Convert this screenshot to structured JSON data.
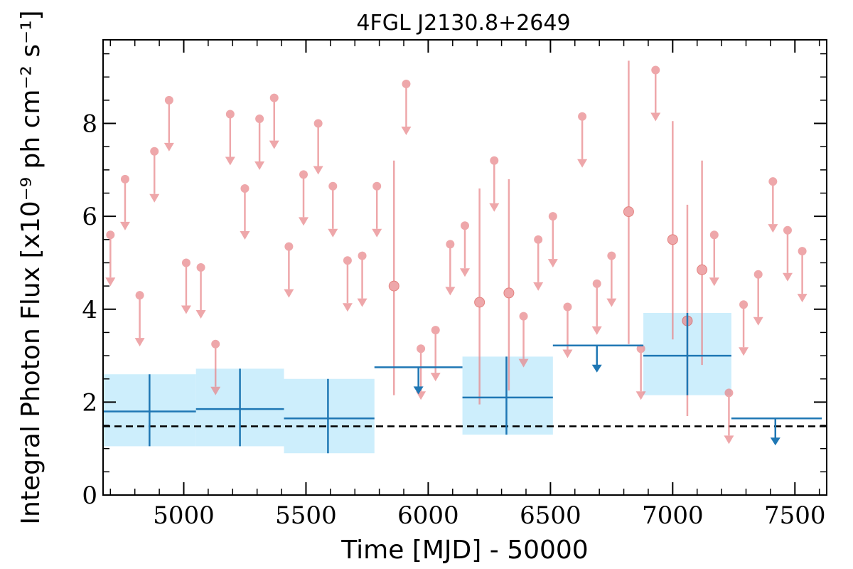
{
  "chart_data": {
    "type": "scatter",
    "title": "4FGL J2130.8+2649",
    "xlabel": "Time [MJD] - 50000",
    "ylabel": "Integral Photon Flux [x10⁻⁹ ph cm⁻² s⁻¹]",
    "xlim": [
      4670,
      7630
    ],
    "ylim": [
      0,
      9.8
    ],
    "xticks": [
      5000,
      5500,
      6000,
      6500,
      7000,
      7500
    ],
    "yticks": [
      0,
      2,
      4,
      6,
      8
    ],
    "grid": false,
    "baseline": {
      "value": 1.48,
      "style": "dashed",
      "color": "#000000"
    },
    "colors": {
      "short_bins": "#e8868a",
      "long_bins": "#1f77b4",
      "long_bins_fill": "#cdeefc"
    },
    "short_bin_upper_limits": {
      "x": [
        4700,
        4760,
        4820,
        4880,
        4940,
        5010,
        5070,
        5130,
        5190,
        5250,
        5310,
        5370,
        5430,
        5490,
        5550,
        5610,
        5670,
        5730,
        5790,
        5910,
        5970,
        6030,
        6090,
        6150,
        6270,
        6390,
        6450,
        6510,
        6570,
        6630,
        6690,
        6750,
        6870,
        6930,
        7170,
        7230,
        7290,
        7350,
        7410,
        7470,
        7530
      ],
      "y": [
        5.6,
        6.8,
        4.3,
        7.4,
        8.5,
        5.0,
        4.9,
        3.25,
        8.2,
        6.6,
        8.1,
        8.55,
        5.35,
        6.9,
        8.0,
        6.65,
        5.05,
        5.15,
        6.65,
        8.85,
        3.15,
        3.55,
        5.4,
        5.8,
        7.2,
        3.85,
        5.5,
        6.0,
        4.05,
        8.15,
        4.55,
        5.15,
        3.15,
        9.15,
        5.6,
        2.2,
        4.1,
        4.75,
        6.75,
        5.7,
        5.25
      ]
    },
    "short_bin_detections": {
      "x": [
        5860,
        6210,
        6330,
        6820,
        7000,
        7060,
        7120
      ],
      "y": [
        4.5,
        4.15,
        4.35,
        6.1,
        5.5,
        3.75,
        4.85
      ],
      "y_low": [
        2.15,
        1.95,
        2.25,
        3.25,
        3.35,
        1.7,
        2.8
      ],
      "y_high": [
        7.2,
        6.6,
        6.8,
        9.35,
        8.05,
        6.25,
        7.2
      ]
    },
    "long_bin_detections": {
      "x": [
        4860,
        5230,
        5590,
        6320,
        7060
      ],
      "x_low": [
        4670,
        5050,
        5410,
        6140,
        6880
      ],
      "x_high": [
        5050,
        5410,
        5780,
        6510,
        7240
      ],
      "y": [
        1.8,
        1.85,
        1.65,
        2.1,
        3.0
      ],
      "y_low": [
        1.05,
        1.05,
        0.9,
        1.3,
        2.15
      ],
      "y_high": [
        2.6,
        2.72,
        2.5,
        2.98,
        3.92
      ]
    },
    "long_bin_upper_limits": {
      "x": [
        5960,
        6690,
        7420
      ],
      "x_low": [
        5780,
        6510,
        7240
      ],
      "x_high": [
        6140,
        6880,
        7610
      ],
      "y": [
        2.75,
        3.22,
        1.65
      ]
    }
  }
}
